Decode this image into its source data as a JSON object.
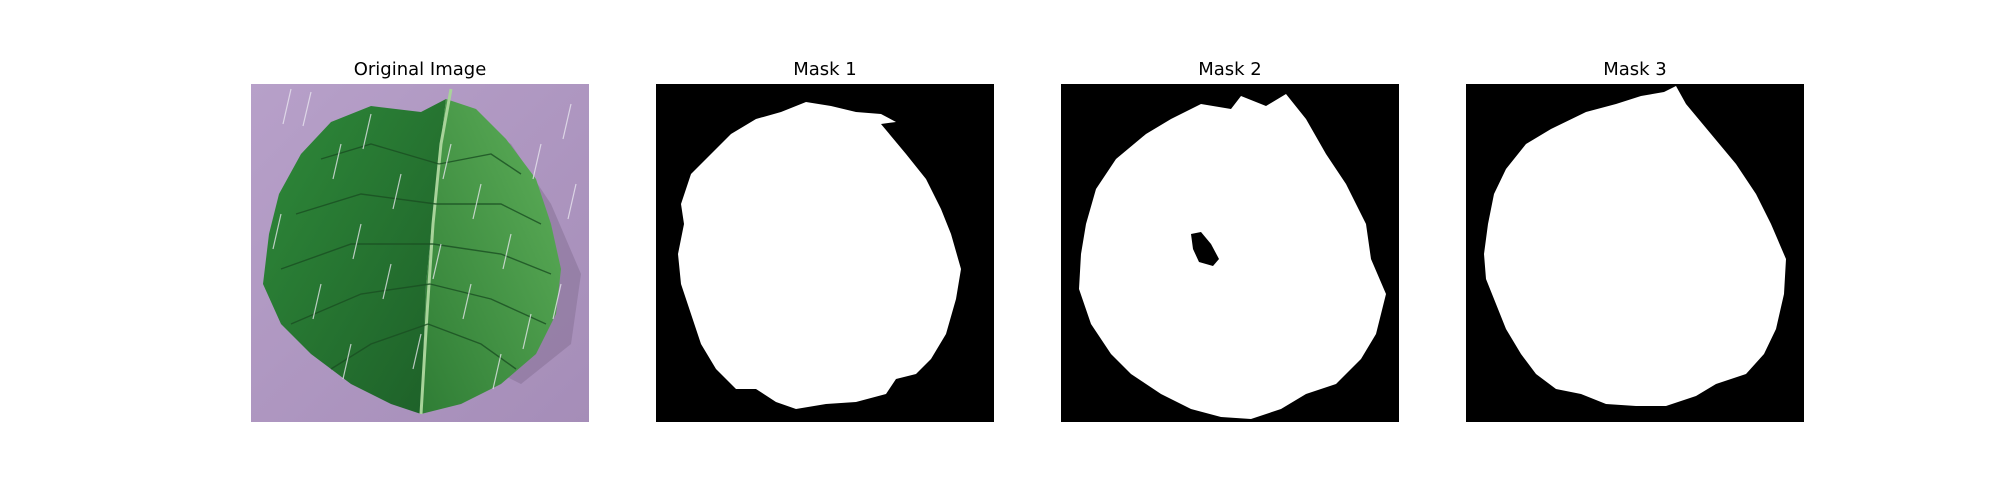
{
  "panels": [
    {
      "title": "Original Image",
      "kind": "photo",
      "subject": "leaf-photo"
    },
    {
      "title": "Mask 1",
      "kind": "mask",
      "subject": "leaf-mask"
    },
    {
      "title": "Mask 2",
      "kind": "mask",
      "subject": "leaf-mask"
    },
    {
      "title": "Mask 3",
      "kind": "mask",
      "subject": "leaf-mask"
    }
  ],
  "colors": {
    "figure_background": "#ffffff",
    "mask_background": "#000000",
    "mask_foreground": "#ffffff",
    "photo_background": "#b49ac4",
    "leaf_dark": "#1f6a2c",
    "leaf_light": "#3f9a3d",
    "rain_streak": "#e8e8f0"
  }
}
